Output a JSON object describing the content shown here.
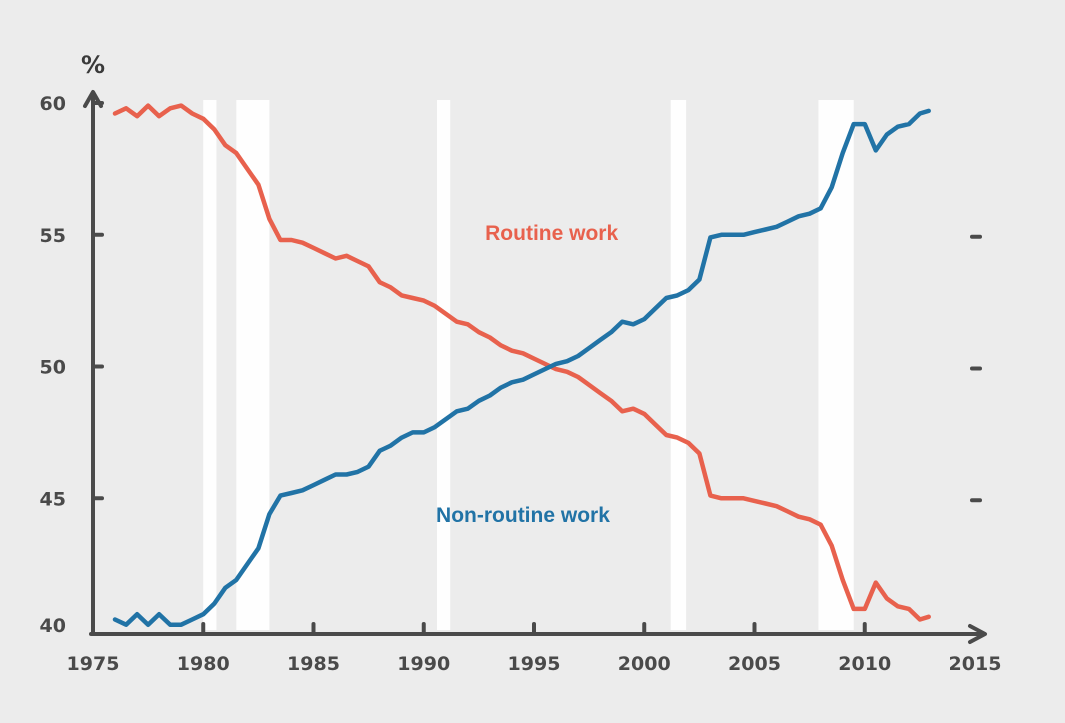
{
  "chart_data": {
    "type": "line",
    "title": "",
    "ylabel": "%",
    "xlabel": "",
    "xlim": [
      1975,
      2015
    ],
    "ylim": [
      40,
      60
    ],
    "xticks": [
      "1975",
      "1980",
      "1985",
      "1990",
      "1995",
      "2000",
      "2005",
      "2010",
      "2015"
    ],
    "yticks": [
      "40",
      "45",
      "50",
      "55",
      "60"
    ],
    "grid": false,
    "recession_bands": [
      [
        1980.0,
        1980.6
      ],
      [
        1981.5,
        1983.0
      ],
      [
        1990.6,
        1991.2
      ],
      [
        2001.2,
        2001.9
      ],
      [
        2007.9,
        2009.5
      ]
    ],
    "series": [
      {
        "name": "Routine work",
        "color": "#e8614d",
        "x": [
          1976.0,
          1976.5,
          1977.0,
          1977.5,
          1978.0,
          1978.5,
          1979.0,
          1979.5,
          1980.0,
          1980.5,
          1981.0,
          1981.5,
          1982.0,
          1982.5,
          1983.0,
          1983.5,
          1984.0,
          1984.5,
          1985.0,
          1985.5,
          1986.0,
          1986.5,
          1987.0,
          1987.5,
          1988.0,
          1988.5,
          1989.0,
          1989.5,
          1990.0,
          1990.5,
          1991.0,
          1991.5,
          1992.0,
          1992.5,
          1993.0,
          1993.5,
          1994.0,
          1994.5,
          1995.0,
          1995.5,
          1996.0,
          1996.5,
          1997.0,
          1997.5,
          1998.0,
          1998.5,
          1999.0,
          1999.5,
          2000.0,
          2000.5,
          2001.0,
          2001.5,
          2002.0,
          2002.5,
          2003.0,
          2003.5,
          2004.0,
          2004.5,
          2005.0,
          2005.5,
          2006.0,
          2006.5,
          2007.0,
          2007.5,
          2008.0,
          2008.5,
          2009.0,
          2009.5,
          2010.0,
          2010.5,
          2011.0,
          2011.5,
          2012.0,
          2012.5,
          2012.9
        ],
        "y": [
          59.6,
          59.8,
          59.5,
          59.9,
          59.5,
          59.8,
          59.9,
          59.6,
          59.4,
          59.0,
          58.4,
          58.1,
          57.5,
          56.9,
          55.6,
          54.8,
          54.8,
          54.7,
          54.5,
          54.3,
          54.1,
          54.2,
          54.0,
          53.8,
          53.2,
          53.0,
          52.7,
          52.6,
          52.5,
          52.3,
          52.0,
          51.7,
          51.6,
          51.3,
          51.1,
          50.8,
          50.6,
          50.5,
          50.3,
          50.1,
          49.9,
          49.8,
          49.6,
          49.3,
          49.0,
          48.7,
          48.3,
          48.4,
          48.2,
          47.8,
          47.4,
          47.3,
          47.1,
          46.7,
          45.1,
          45.0,
          45.0,
          45.0,
          44.9,
          44.8,
          44.7,
          44.5,
          44.3,
          44.2,
          44.0,
          43.2,
          41.9,
          40.8,
          40.8,
          41.8,
          41.2,
          40.9,
          40.8,
          40.4,
          40.5
        ]
      },
      {
        "name": "Non-routine work",
        "color": "#2173a6",
        "x": [
          1976.0,
          1976.5,
          1977.0,
          1977.5,
          1978.0,
          1978.5,
          1979.0,
          1979.5,
          1980.0,
          1980.5,
          1981.0,
          1981.5,
          1982.0,
          1982.5,
          1983.0,
          1983.5,
          1984.0,
          1984.5,
          1985.0,
          1985.5,
          1986.0,
          1986.5,
          1987.0,
          1987.5,
          1988.0,
          1988.5,
          1989.0,
          1989.5,
          1990.0,
          1990.5,
          1991.0,
          1991.5,
          1992.0,
          1992.5,
          1993.0,
          1993.5,
          1994.0,
          1994.5,
          1995.0,
          1995.5,
          1996.0,
          1996.5,
          1997.0,
          1997.5,
          1998.0,
          1998.5,
          1999.0,
          1999.5,
          2000.0,
          2000.5,
          2001.0,
          2001.5,
          2002.0,
          2002.5,
          2003.0,
          2003.5,
          2004.0,
          2004.5,
          2005.0,
          2005.5,
          2006.0,
          2006.5,
          2007.0,
          2007.5,
          2008.0,
          2008.5,
          2009.0,
          2009.5,
          2010.0,
          2010.5,
          2011.0,
          2011.5,
          2012.0,
          2012.5,
          2012.9
        ],
        "y": [
          40.4,
          40.2,
          40.6,
          40.2,
          40.6,
          40.2,
          40.2,
          40.4,
          40.6,
          41.0,
          41.6,
          41.9,
          42.5,
          43.1,
          44.4,
          45.1,
          45.2,
          45.3,
          45.5,
          45.7,
          45.9,
          45.9,
          46.0,
          46.2,
          46.8,
          47.0,
          47.3,
          47.5,
          47.5,
          47.7,
          48.0,
          48.3,
          48.4,
          48.7,
          48.9,
          49.2,
          49.4,
          49.5,
          49.7,
          49.9,
          50.1,
          50.2,
          50.4,
          50.7,
          51.0,
          51.3,
          51.7,
          51.6,
          51.8,
          52.2,
          52.6,
          52.7,
          52.9,
          53.3,
          54.9,
          55.0,
          55.0,
          55.0,
          55.1,
          55.2,
          55.3,
          55.5,
          55.7,
          55.8,
          56.0,
          56.8,
          58.1,
          59.2,
          59.2,
          58.2,
          58.8,
          59.1,
          59.2,
          59.6,
          59.7
        ]
      }
    ],
    "annotations": [
      {
        "text": "Routine work",
        "x": 1995.8,
        "y": 54.8,
        "color": "#e8614d"
      },
      {
        "text": "Non-routine work",
        "x": 1994.5,
        "y": 44.1,
        "color": "#2173a6"
      }
    ]
  }
}
